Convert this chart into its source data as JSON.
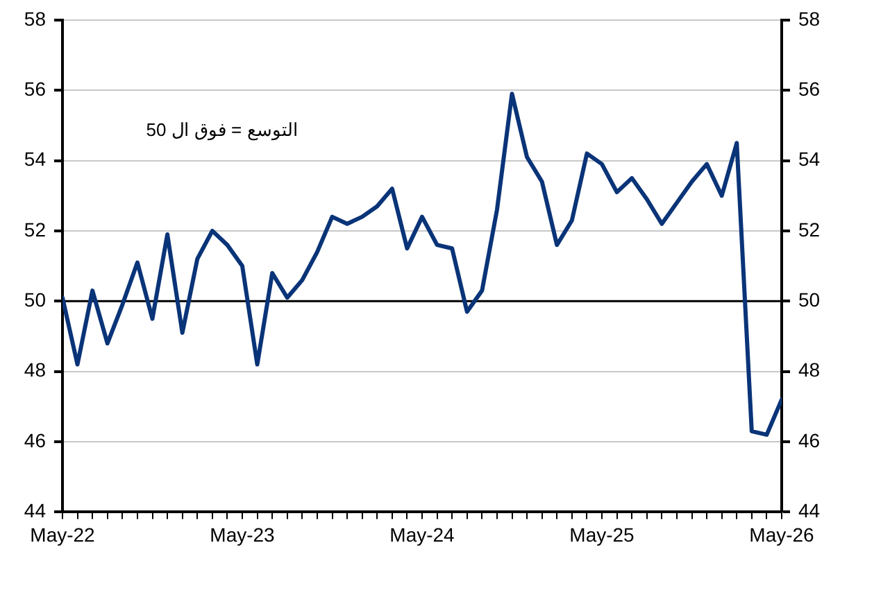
{
  "chart_data": {
    "type": "line",
    "x": [
      "2022-05",
      "2022-06",
      "2022-07",
      "2022-08",
      "2022-09",
      "2022-10",
      "2022-11",
      "2022-12",
      "2023-01",
      "2023-02",
      "2023-03",
      "2023-04",
      "2023-05",
      "2023-06",
      "2023-07",
      "2023-08",
      "2023-09",
      "2023-10",
      "2023-11",
      "2023-12",
      "2024-01",
      "2024-02",
      "2024-03",
      "2024-04",
      "2024-05",
      "2024-06",
      "2024-07",
      "2024-08",
      "2024-09",
      "2024-10",
      "2024-11",
      "2024-12",
      "2025-01",
      "2025-02",
      "2025-03",
      "2025-04",
      "2025-05",
      "2025-06",
      "2025-07",
      "2025-08",
      "2025-09",
      "2025-10",
      "2025-11",
      "2025-12",
      "2026-01",
      "2026-02",
      "2026-03",
      "2026-04",
      "2026-05"
    ],
    "series": [
      {
        "color": "#0a3478",
        "values": [
          50.1,
          48.2,
          50.3,
          48.8,
          49.9,
          51.1,
          49.5,
          51.9,
          49.1,
          51.2,
          52.0,
          51.6,
          51.0,
          48.2,
          50.8,
          50.1,
          50.6,
          51.4,
          52.4,
          52.2,
          52.4,
          52.7,
          53.2,
          51.5,
          52.4,
          51.6,
          51.5,
          49.7,
          50.3,
          52.6,
          55.9,
          54.1,
          53.4,
          51.6,
          52.3,
          54.2,
          53.9,
          53.1,
          53.5,
          52.9,
          52.2,
          52.8,
          53.4,
          53.9,
          53.0,
          54.5,
          46.3,
          46.2,
          47.2
        ]
      }
    ],
    "xlim": [
      "2022-05",
      "2026-05"
    ],
    "xticks": [
      {
        "value": "2022-05",
        "label": "May-22"
      },
      {
        "value": "2023-05",
        "label": "May-23"
      },
      {
        "value": "2024-05",
        "label": "May-24"
      },
      {
        "value": "2025-05",
        "label": "May-25"
      },
      {
        "value": "2026-05",
        "label": "May-26"
      }
    ],
    "ylim": [
      44,
      58
    ],
    "yticks": [
      44,
      46,
      48,
      50,
      52,
      54,
      56,
      58
    ],
    "y2lim": [
      44,
      58
    ],
    "y2ticks": [
      44,
      46,
      48,
      50,
      52,
      54,
      56,
      58
    ],
    "ref_lines": [
      {
        "axis": "y",
        "value": 50,
        "color": "#000000"
      }
    ],
    "annotations": [
      "التوسع = فوق ال 50"
    ],
    "grid": "y",
    "legend": false,
    "marker": "none",
    "line_style": "solid"
  }
}
